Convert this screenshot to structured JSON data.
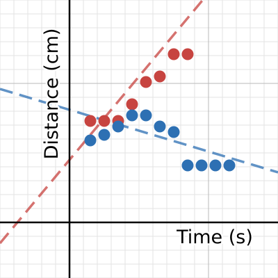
{
  "chart_data": {
    "type": "scatter",
    "title": "",
    "xlabel": "Time (s)",
    "ylabel": "Distance (cm)",
    "xlim": [
      -5,
      15
    ],
    "ylim": [
      -4,
      16
    ],
    "grid": true,
    "minor_grid_step": 1,
    "major_grid_step": 10,
    "series": [
      {
        "color": "#c74440",
        "points": [
          {
            "x": 1.5,
            "y": 7.3
          },
          {
            "x": 2.5,
            "y": 7.3
          },
          {
            "x": 3.5,
            "y": 7.3
          },
          {
            "x": 4.5,
            "y": 8.5
          },
          {
            "x": 5.5,
            "y": 10.1
          },
          {
            "x": 6.5,
            "y": 10.5
          },
          {
            "x": 7.5,
            "y": 12.1
          },
          {
            "x": 8.5,
            "y": 12.1
          }
        ],
        "trendline": {
          "slope": 1.2,
          "intercept": 4.5,
          "style": "dashed"
        }
      },
      {
        "color": "#2d70b3",
        "points": [
          {
            "x": 1.5,
            "y": 5.9
          },
          {
            "x": 2.5,
            "y": 6.3
          },
          {
            "x": 3.5,
            "y": 6.9
          },
          {
            "x": 4.5,
            "y": 7.7
          },
          {
            "x": 5.5,
            "y": 7.7
          },
          {
            "x": 6.5,
            "y": 6.9
          },
          {
            "x": 7.5,
            "y": 6.5
          },
          {
            "x": 8.5,
            "y": 4.1
          },
          {
            "x": 9.5,
            "y": 4.1
          },
          {
            "x": 10.5,
            "y": 4.1
          },
          {
            "x": 11.5,
            "y": 4.1
          }
        ],
        "trendline": {
          "slope": -0.3,
          "intercept": 8.1,
          "style": "dashed"
        }
      }
    ]
  }
}
